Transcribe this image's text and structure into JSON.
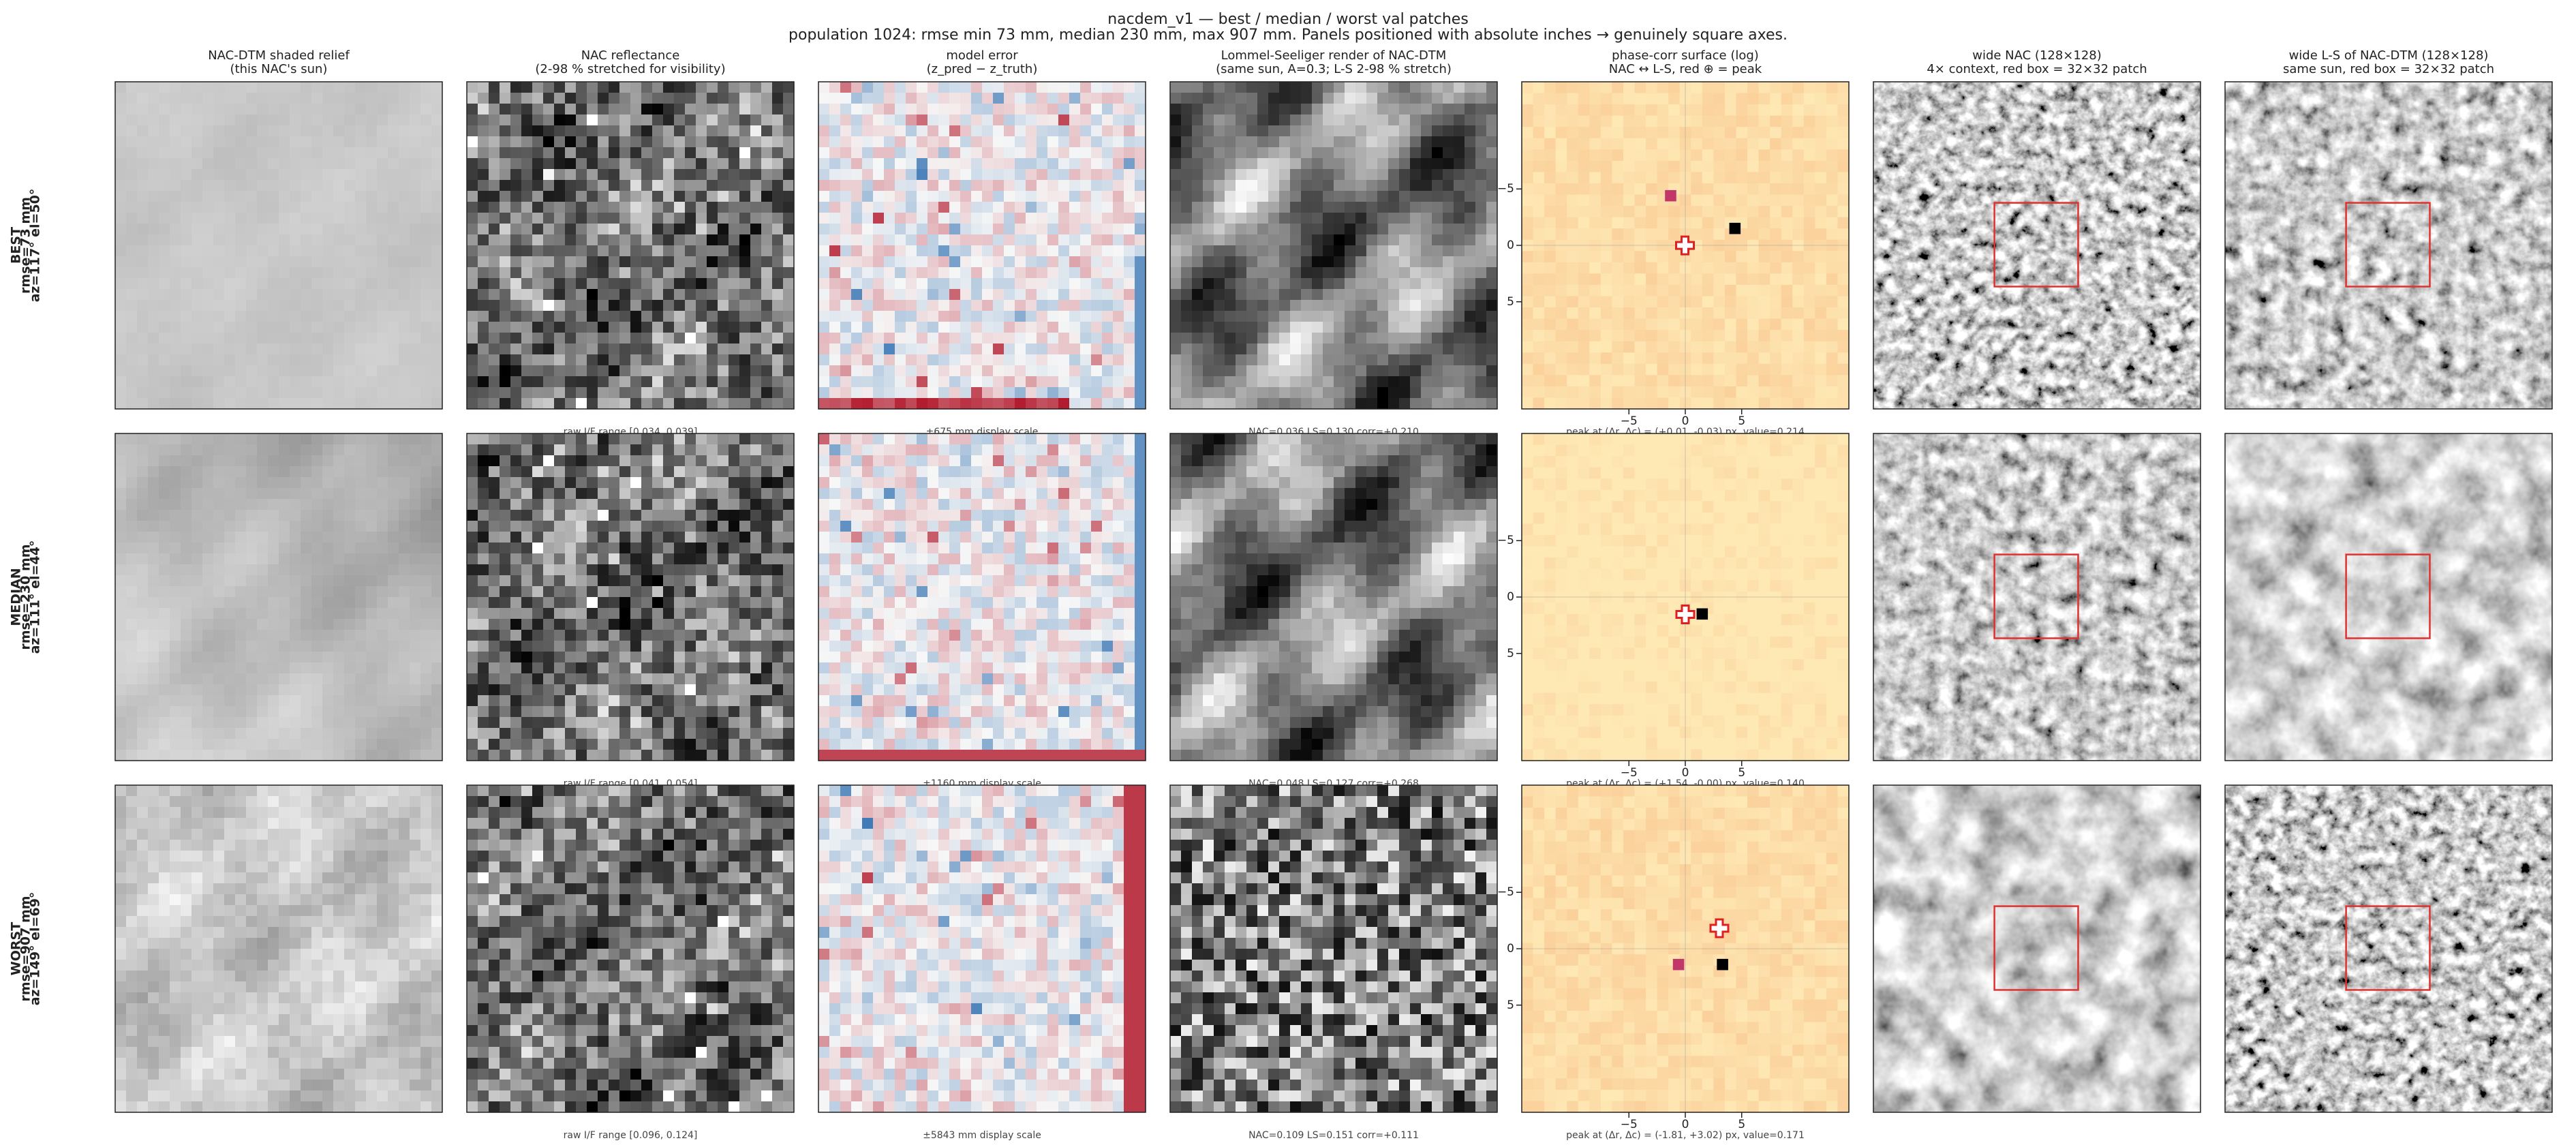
{
  "header": {
    "title": "nacdem_v1 — best / median / worst val patches",
    "subtitle": "population 1024: rmse min 73 mm, median 230 mm, max 907 mm. Panels positioned with absolute inches → genuinely square axes."
  },
  "columns": [
    {
      "title": "NAC-DTM shaded relief",
      "subtitle": "(this NAC's sun)"
    },
    {
      "title": "NAC reflectance",
      "subtitle": "(2-98 % stretched for visibility)"
    },
    {
      "title": "model error",
      "subtitle": "(z_pred − z_truth)"
    },
    {
      "title": "Lommel-Seeliger render of NAC-DTM",
      "subtitle": "(same sun, A=0.3; L-S 2-98 % stretch)"
    },
    {
      "title": "phase-corr surface (log)",
      "subtitle": "NAC ↔ L-S, red ⊕ = peak"
    },
    {
      "title": "wide NAC (128×128)",
      "subtitle": "4× context, red box = 32×32 patch"
    },
    {
      "title": "wide L-S of NAC-DTM (128×128)",
      "subtitle": "same sun, red box = 32×32 patch"
    }
  ],
  "rows": [
    {
      "label": [
        "BEST",
        "rmse=73 mm",
        "az=117°  el=50°"
      ],
      "footnotes": [
        "raw I/F range [0.034, 0.039]",
        "±675 mm display scale",
        "NAC=0.036  LS=0.130  corr=+0.210",
        "peak at (Δr, Δc) = (+0.01, -0.03) px, value=0.214"
      ],
      "peak": {
        "dr": 0.01,
        "dc": -0.03
      },
      "secondary": [
        {
          "dr": -1.5,
          "dc": 4.4,
          "color": "#000000"
        },
        {
          "dr": -4.4,
          "dc": -1.3,
          "color": "#c2376a"
        }
      ]
    },
    {
      "label": [
        "MEDIAN",
        "rmse=230 mm",
        "az=111°  el=44°"
      ],
      "footnotes": [
        "raw I/F range [0.041, 0.054]",
        "±1160 mm display scale",
        "NAC=0.048  LS=0.127  corr=+0.268",
        "peak at (Δr, Δc) = (+1.54, -0.00) px, value=0.140"
      ],
      "peak": {
        "dr": 1.54,
        "dc": -0.0
      },
      "secondary": [
        {
          "dr": 1.5,
          "dc": 1.5,
          "color": "#000000"
        }
      ]
    },
    {
      "label": [
        "WORST",
        "rmse=907 mm",
        "az=149°  el=69°"
      ],
      "footnotes": [
        "raw I/F range [0.096, 0.124]",
        "±5843 mm display scale",
        "NAC=0.109  LS=0.151  corr=+0.111",
        "peak at (Δr, Δc) = (-1.81, +3.02) px, value=0.171"
      ],
      "peak": {
        "dr": -1.81,
        "dc": 3.02
      },
      "secondary": [
        {
          "dr": 1.4,
          "dc": 3.3,
          "color": "#000000"
        },
        {
          "dr": 1.4,
          "dc": -0.6,
          "color": "#c2376a"
        }
      ]
    }
  ],
  "phase_axes": {
    "xlim": [
      -14.5,
      14.5
    ],
    "ylim": [
      -14.5,
      14.5
    ],
    "xticks": [
      {
        "value": -5,
        "label": "−5"
      },
      0,
      5
    ],
    "yticks": [
      {
        "value": -5,
        "label": "−5"
      },
      0,
      5
    ]
  }
}
